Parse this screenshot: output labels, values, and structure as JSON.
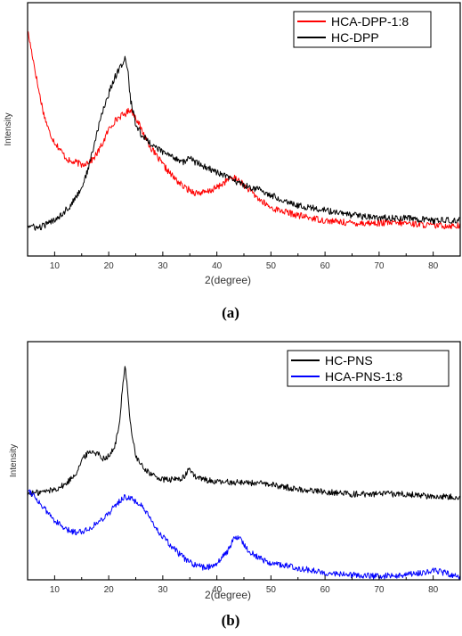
{
  "chart_data": [
    {
      "type": "line",
      "caption": "(a)",
      "xlabel": "2(degree)",
      "ylabel": "Intensity",
      "xlim": [
        5,
        85
      ],
      "ylim": [
        0,
        100
      ],
      "xticks": [
        10,
        20,
        30,
        40,
        50,
        60,
        70,
        80
      ],
      "legend_position": "top-right",
      "grid": false,
      "series": [
        {
          "name": "HCA-DPP-1:8",
          "color": "#ff0000",
          "x": [
            5,
            6,
            7,
            8,
            9,
            10,
            11,
            12,
            13,
            14,
            15,
            16,
            17,
            18,
            19,
            20,
            21,
            22,
            23,
            24,
            25,
            26,
            27,
            28,
            29,
            30,
            32,
            34,
            36,
            38,
            40,
            42,
            43,
            44,
            46,
            48,
            50,
            55,
            60,
            65,
            70,
            75,
            80,
            85
          ],
          "y": [
            89,
            78,
            66,
            56,
            49,
            45,
            42,
            39,
            37,
            37,
            36,
            37,
            38,
            41,
            45,
            50,
            53,
            55,
            56,
            58,
            55,
            50,
            46,
            42,
            39,
            36,
            31,
            27,
            25,
            25,
            27,
            30,
            31,
            30,
            26,
            22,
            19,
            16,
            14,
            13,
            13,
            13,
            12,
            12
          ]
        },
        {
          "name": "HC-DPP",
          "color": "#000000",
          "x": [
            5,
            7,
            9,
            11,
            13,
            15,
            16,
            17,
            18,
            19,
            20,
            21,
            22,
            22.5,
            23,
            23.5,
            24,
            25,
            26,
            27,
            28,
            30,
            32,
            34,
            35,
            36,
            38,
            40,
            42,
            45,
            48,
            50,
            55,
            60,
            65,
            70,
            75,
            80,
            85
          ],
          "y": [
            12,
            11,
            13,
            16,
            20,
            27,
            33,
            41,
            50,
            58,
            64,
            70,
            74,
            76,
            78,
            74,
            62,
            52,
            48,
            46,
            44,
            41,
            39,
            37,
            39,
            37,
            35,
            33,
            31,
            28,
            26,
            24,
            20,
            18,
            16,
            15,
            15,
            14,
            14
          ]
        }
      ]
    },
    {
      "type": "line",
      "caption": "(b)",
      "xlabel": "2(degree)",
      "ylabel": "Intensity",
      "xlim": [
        5,
        85
      ],
      "ylim": [
        0,
        100
      ],
      "xticks": [
        10,
        20,
        30,
        40,
        50,
        60,
        70,
        80
      ],
      "legend_position": "top-right",
      "grid": false,
      "series": [
        {
          "name": "HC-PNS",
          "color": "#000000",
          "x": [
            5,
            8,
            10,
            12,
            14,
            15,
            16,
            17,
            18,
            19,
            20,
            21,
            22,
            22.5,
            23,
            23.5,
            24,
            25,
            26,
            28,
            30,
            32,
            34,
            35,
            36,
            38,
            40,
            45,
            50,
            55,
            60,
            65,
            70,
            75,
            80,
            85
          ],
          "y": [
            36,
            37,
            38,
            40,
            45,
            50,
            53,
            54,
            53,
            51,
            52,
            55,
            65,
            80,
            90,
            80,
            65,
            52,
            48,
            44,
            42,
            42,
            43,
            47,
            43,
            42,
            41,
            41,
            40,
            38,
            37,
            36,
            36,
            36,
            35,
            35
          ]
        },
        {
          "name": "HCA-PNS-1:8",
          "color": "#0000ff",
          "x": [
            5,
            6,
            7,
            8,
            10,
            12,
            14,
            16,
            18,
            20,
            22,
            23,
            24,
            25,
            26,
            27,
            28,
            30,
            32,
            34,
            36,
            38,
            40,
            42,
            43,
            44,
            45,
            46,
            48,
            50,
            55,
            60,
            65,
            70,
            75,
            78,
            80,
            82,
            85
          ],
          "y": [
            38,
            36,
            33,
            30,
            25,
            21,
            20,
            21,
            24,
            28,
            33,
            35,
            34,
            33,
            31,
            28,
            24,
            18,
            13,
            9,
            6,
            5,
            7,
            12,
            17,
            18,
            15,
            12,
            9,
            7,
            5,
            3,
            2,
            1.5,
            2,
            3,
            4,
            3,
            1
          ]
        }
      ]
    }
  ]
}
